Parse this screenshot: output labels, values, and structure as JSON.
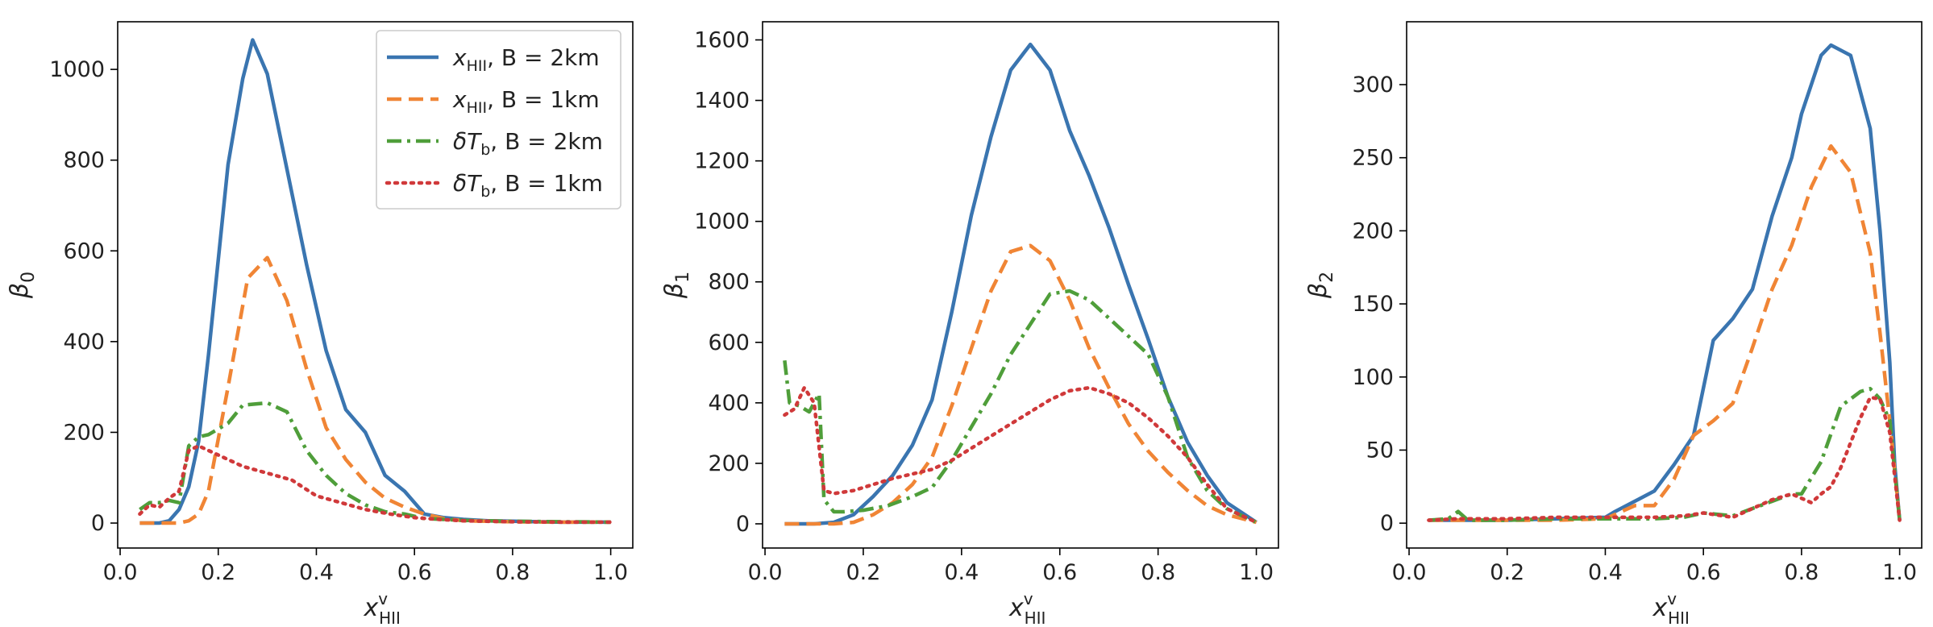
{
  "colors": {
    "blue": "#3a75b0",
    "orange": "#f08535",
    "green": "#4f9e3a",
    "red": "#d0393a"
  },
  "legend": [
    {
      "label_main": "x",
      "label_sub": "HII",
      "label_rest": ", B = 2km",
      "color": "#3a75b0",
      "dash": "solid"
    },
    {
      "label_main": "x",
      "label_sub": "HII",
      "label_rest": ", B = 1km",
      "color": "#f08535",
      "dash": "dashed"
    },
    {
      "label_main": "δT",
      "label_sub": "b",
      "label_rest": ", B = 2km",
      "color": "#4f9e3a",
      "dash": "dashdot"
    },
    {
      "label_main": "δT",
      "label_sub": "b",
      "label_rest": ", B = 1km",
      "color": "#d0393a",
      "dash": "dotted"
    }
  ],
  "chart_data": [
    {
      "type": "line",
      "xlabel_main": "x",
      "xlabel_sup": "v",
      "xlabel_sub": "HII",
      "ylabel_main": "β",
      "ylabel_sub": "0",
      "xlim": [
        -0.005,
        1.045
      ],
      "ylim": [
        -55,
        1105
      ],
      "xticks": [
        0.0,
        0.2,
        0.4,
        0.6,
        0.8,
        1.0
      ],
      "xtick_labels": [
        "0.0",
        "0.2",
        "0.4",
        "0.6",
        "0.8",
        "1.0"
      ],
      "yticks": [
        0,
        200,
        400,
        600,
        800,
        1000
      ],
      "ytick_labels": [
        "0",
        "200",
        "400",
        "600",
        "800",
        "1000"
      ],
      "legend_location": "upper right",
      "series": [
        {
          "name": "x_HII, B = 2km",
          "style": "solid",
          "x": [
            0.04,
            0.08,
            0.1,
            0.12,
            0.14,
            0.16,
            0.18,
            0.22,
            0.25,
            0.27,
            0.3,
            0.34,
            0.38,
            0.42,
            0.46,
            0.5,
            0.54,
            0.58,
            0.62,
            0.66,
            0.7,
            0.75,
            0.8,
            0.85,
            0.9,
            0.95,
            1.0
          ],
          "y": [
            0,
            0,
            5,
            30,
            80,
            180,
            370,
            790,
            980,
            1065,
            990,
            780,
            570,
            380,
            250,
            200,
            105,
            70,
            20,
            12,
            8,
            5,
            4,
            3,
            2,
            2,
            2
          ]
        },
        {
          "name": "x_HII, B = 1km",
          "style": "dashed",
          "x": [
            0.04,
            0.1,
            0.12,
            0.14,
            0.16,
            0.18,
            0.22,
            0.26,
            0.3,
            0.34,
            0.38,
            0.42,
            0.46,
            0.5,
            0.54,
            0.58,
            0.62,
            0.66,
            0.7,
            0.8,
            0.9,
            1.0
          ],
          "y": [
            0,
            0,
            0,
            5,
            20,
            70,
            300,
            540,
            585,
            490,
            340,
            210,
            140,
            90,
            55,
            35,
            20,
            10,
            5,
            3,
            2,
            2
          ]
        },
        {
          "name": "δT_b, B = 2km",
          "style": "dashdot",
          "x": [
            0.04,
            0.06,
            0.08,
            0.1,
            0.12,
            0.14,
            0.16,
            0.18,
            0.22,
            0.25,
            0.3,
            0.34,
            0.38,
            0.42,
            0.46,
            0.5,
            0.54,
            0.58,
            0.62,
            0.66,
            0.7,
            0.8,
            0.9,
            1.0
          ],
          "y": [
            30,
            45,
            45,
            50,
            45,
            170,
            190,
            195,
            220,
            260,
            265,
            245,
            160,
            105,
            65,
            40,
            25,
            20,
            10,
            8,
            6,
            4,
            3,
            2
          ]
        },
        {
          "name": "δT_b, B = 1km",
          "style": "dotted",
          "x": [
            0.04,
            0.06,
            0.08,
            0.1,
            0.12,
            0.14,
            0.16,
            0.2,
            0.25,
            0.3,
            0.35,
            0.4,
            0.45,
            0.5,
            0.55,
            0.6,
            0.65,
            0.7,
            0.8,
            0.9,
            1.0
          ],
          "y": [
            20,
            40,
            35,
            55,
            70,
            160,
            170,
            150,
            125,
            110,
            95,
            60,
            45,
            30,
            20,
            12,
            8,
            5,
            3,
            2,
            2
          ]
        }
      ]
    },
    {
      "type": "line",
      "xlabel_main": "x",
      "xlabel_sup": "v",
      "xlabel_sub": "HII",
      "ylabel_main": "β",
      "ylabel_sub": "1",
      "xlim": [
        -0.005,
        1.045
      ],
      "ylim": [
        -80,
        1660
      ],
      "xticks": [
        0.0,
        0.2,
        0.4,
        0.6,
        0.8,
        1.0
      ],
      "xtick_labels": [
        "0.0",
        "0.2",
        "0.4",
        "0.6",
        "0.8",
        "1.0"
      ],
      "yticks": [
        0,
        200,
        400,
        600,
        800,
        1000,
        1200,
        1400,
        1600
      ],
      "ytick_labels": [
        "0",
        "200",
        "400",
        "600",
        "800",
        "1000",
        "1200",
        "1400",
        "1600"
      ],
      "series": [
        {
          "name": "x_HII, B = 2km",
          "style": "solid",
          "x": [
            0.04,
            0.1,
            0.14,
            0.18,
            0.22,
            0.26,
            0.3,
            0.34,
            0.38,
            0.42,
            0.46,
            0.5,
            0.54,
            0.58,
            0.62,
            0.66,
            0.7,
            0.74,
            0.78,
            0.82,
            0.86,
            0.9,
            0.94,
            1.0
          ],
          "y": [
            0,
            0,
            5,
            30,
            90,
            160,
            260,
            410,
            700,
            1020,
            1280,
            1500,
            1585,
            1500,
            1300,
            1150,
            980,
            790,
            610,
            420,
            270,
            160,
            70,
            5
          ]
        },
        {
          "name": "x_HII, B = 1km",
          "style": "dashed",
          "x": [
            0.04,
            0.1,
            0.14,
            0.18,
            0.22,
            0.26,
            0.3,
            0.34,
            0.38,
            0.42,
            0.46,
            0.5,
            0.54,
            0.58,
            0.62,
            0.66,
            0.7,
            0.74,
            0.78,
            0.82,
            0.86,
            0.9,
            0.94,
            1.0
          ],
          "y": [
            0,
            0,
            0,
            5,
            30,
            70,
            130,
            220,
            390,
            580,
            770,
            900,
            920,
            870,
            740,
            580,
            450,
            330,
            240,
            170,
            110,
            60,
            30,
            5
          ]
        },
        {
          "name": "δT_b, B = 2km",
          "style": "dashdot",
          "x": [
            0.04,
            0.05,
            0.07,
            0.09,
            0.11,
            0.12,
            0.14,
            0.16,
            0.2,
            0.25,
            0.3,
            0.34,
            0.38,
            0.42,
            0.46,
            0.5,
            0.54,
            0.58,
            0.62,
            0.66,
            0.7,
            0.74,
            0.78,
            0.82,
            0.86,
            0.9,
            0.94,
            1.0
          ],
          "y": [
            540,
            400,
            390,
            370,
            430,
            80,
            40,
            40,
            45,
            60,
            90,
            120,
            210,
            320,
            430,
            560,
            660,
            760,
            770,
            740,
            680,
            620,
            560,
            420,
            220,
            110,
            50,
            5
          ]
        },
        {
          "name": "δT_b, B = 1km",
          "style": "dotted",
          "x": [
            0.04,
            0.06,
            0.08,
            0.1,
            0.12,
            0.14,
            0.18,
            0.22,
            0.26,
            0.3,
            0.34,
            0.38,
            0.42,
            0.46,
            0.5,
            0.54,
            0.58,
            0.62,
            0.66,
            0.7,
            0.74,
            0.78,
            0.82,
            0.86,
            0.9,
            0.94,
            1.0
          ],
          "y": [
            360,
            380,
            450,
            400,
            110,
            100,
            110,
            130,
            150,
            165,
            180,
            210,
            250,
            290,
            330,
            370,
            410,
            440,
            450,
            430,
            400,
            350,
            290,
            220,
            130,
            50,
            5
          ]
        }
      ]
    },
    {
      "type": "line",
      "xlabel_main": "x",
      "xlabel_sup": "v",
      "xlabel_sub": "HII",
      "ylabel_main": "β",
      "ylabel_sub": "2",
      "xlim": [
        -0.005,
        1.045
      ],
      "ylim": [
        -17,
        343
      ],
      "xticks": [
        0.0,
        0.2,
        0.4,
        0.6,
        0.8,
        1.0
      ],
      "xtick_labels": [
        "0.0",
        "0.2",
        "0.4",
        "0.6",
        "0.8",
        "1.0"
      ],
      "yticks": [
        0,
        50,
        100,
        150,
        200,
        250,
        300
      ],
      "ytick_labels": [
        "0",
        "50",
        "100",
        "150",
        "200",
        "250",
        "300"
      ],
      "series": [
        {
          "name": "x_HII, B = 2km",
          "style": "solid",
          "x": [
            0.04,
            0.1,
            0.2,
            0.3,
            0.4,
            0.42,
            0.46,
            0.5,
            0.54,
            0.58,
            0.62,
            0.66,
            0.7,
            0.74,
            0.78,
            0.8,
            0.84,
            0.86,
            0.9,
            0.94,
            0.96,
            0.98,
            0.99,
            1.0
          ],
          "y": [
            2,
            2,
            2,
            3,
            4,
            8,
            15,
            22,
            40,
            60,
            125,
            140,
            160,
            210,
            250,
            280,
            320,
            327,
            320,
            270,
            200,
            110,
            40,
            2
          ]
        },
        {
          "name": "x_HII, B = 1km",
          "style": "dashed",
          "x": [
            0.04,
            0.1,
            0.2,
            0.3,
            0.4,
            0.46,
            0.5,
            0.54,
            0.58,
            0.62,
            0.66,
            0.7,
            0.74,
            0.78,
            0.82,
            0.86,
            0.9,
            0.94,
            0.96,
            0.98,
            1.0
          ],
          "y": [
            2,
            2,
            2,
            2,
            3,
            12,
            12,
            30,
            60,
            70,
            82,
            120,
            160,
            190,
            230,
            258,
            240,
            185,
            130,
            70,
            2
          ]
        },
        {
          "name": "δT_b, B = 2km",
          "style": "dashdot",
          "x": [
            0.04,
            0.08,
            0.1,
            0.12,
            0.2,
            0.3,
            0.4,
            0.5,
            0.56,
            0.6,
            0.66,
            0.7,
            0.74,
            0.78,
            0.8,
            0.84,
            0.88,
            0.92,
            0.94,
            0.96,
            0.98,
            1.0
          ],
          "y": [
            2,
            3,
            8,
            2,
            2,
            3,
            3,
            3,
            4,
            7,
            5,
            10,
            15,
            20,
            20,
            42,
            80,
            90,
            92,
            85,
            70,
            2
          ]
        },
        {
          "name": "δT_b, B = 1km",
          "style": "dotted",
          "x": [
            0.04,
            0.1,
            0.2,
            0.3,
            0.4,
            0.5,
            0.56,
            0.6,
            0.66,
            0.7,
            0.74,
            0.78,
            0.8,
            0.82,
            0.84,
            0.86,
            0.88,
            0.92,
            0.94,
            0.96,
            0.98,
            1.0
          ],
          "y": [
            2,
            3,
            3,
            4,
            4,
            4,
            5,
            7,
            4,
            10,
            16,
            20,
            17,
            14,
            20,
            25,
            38,
            72,
            86,
            85,
            62,
            2
          ]
        }
      ]
    }
  ]
}
